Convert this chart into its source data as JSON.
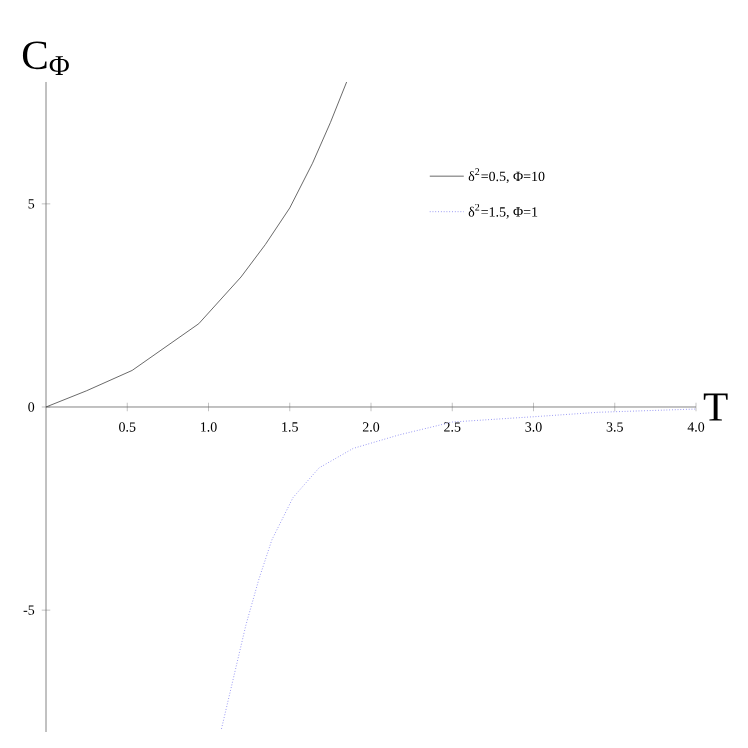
{
  "chart_data": {
    "type": "line",
    "xlabel": "T",
    "ylabel": "C$_{Φ}$",
    "xlim": [
      0,
      4
    ],
    "ylim": [
      -8,
      8
    ],
    "xticks": [
      {
        "value": 0.5,
        "label": "0.5"
      },
      {
        "value": 1,
        "label": "1.0"
      },
      {
        "value": 1.5,
        "label": "1.5"
      },
      {
        "value": 2,
        "label": "2.0"
      },
      {
        "value": 2.5,
        "label": "2.5"
      },
      {
        "value": 3,
        "label": "3.0"
      },
      {
        "value": 3.5,
        "label": "3.5"
      },
      {
        "value": 4,
        "label": "4.0"
      }
    ],
    "yticks": [
      -5,
      0,
      5
    ],
    "grid": false,
    "legend": "top right",
    "series": [
      {
        "name": "δ$^{2}$=0.5, Φ=10",
        "color": "#444444",
        "line_style": "solid",
        "x": [
          0,
          0.25,
          0.53,
          0.94,
          1.2,
          1.35,
          1.5,
          1.64,
          1.75,
          1.85
        ],
        "values": [
          0,
          0.4,
          0.9,
          2.05,
          3.2,
          4.0,
          4.9,
          6.0,
          7.0,
          8.0
        ]
      },
      {
        "name": "δ$^{2}$=1.5, Φ=1",
        "color": "#6666ee",
        "line_style": "dotted",
        "x": [
          1.08,
          1.23,
          1.31,
          1.39,
          1.52,
          1.68,
          1.89,
          2.17,
          2.5,
          3.0,
          3.4,
          4.0
        ],
        "values": [
          -7.92,
          -5.37,
          -4.24,
          -3.27,
          -2.23,
          -1.5,
          -1.02,
          -0.69,
          -0.37,
          -0.24,
          -0.13,
          -0.05
        ]
      }
    ]
  }
}
